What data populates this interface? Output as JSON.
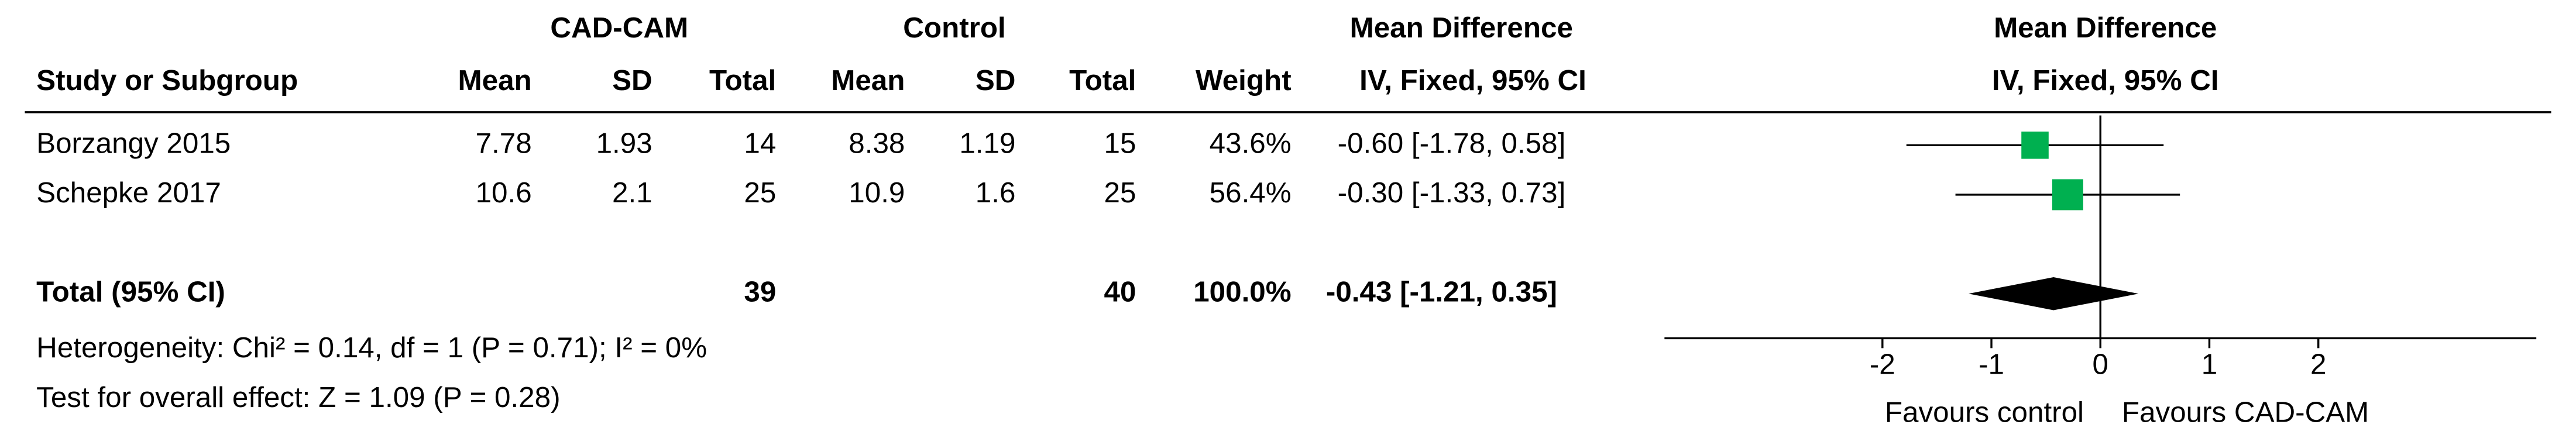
{
  "chart_data": {
    "type": "forest",
    "group_headers": [
      "CAD-CAM",
      "Control"
    ],
    "effect_header": "Mean Difference",
    "effect_method": "IV, Fixed, 95% CI",
    "plot_header": "Mean Difference",
    "plot_method": "IV, Fixed, 95% CI",
    "columns": [
      "Study or Subgroup",
      "Mean",
      "SD",
      "Total",
      "Mean",
      "SD",
      "Total",
      "Weight"
    ],
    "studies": [
      {
        "name": "Borzangy 2015",
        "mean1": 7.78,
        "sd1": 1.93,
        "total1": 14,
        "mean2": 8.38,
        "sd2": 1.19,
        "total2": 15,
        "weight": 43.6,
        "weight_label": "43.6%",
        "md": -0.6,
        "ci_low": -1.78,
        "ci_high": 0.58,
        "effect_label": "-0.60 [-1.78, 0.58]"
      },
      {
        "name": "Schepke 2017",
        "mean1": 10.6,
        "sd1": 2.1,
        "total1": 25,
        "mean2": 10.9,
        "sd2": 1.6,
        "total2": 25,
        "weight": 56.4,
        "weight_label": "56.4%",
        "md": -0.3,
        "ci_low": -1.33,
        "ci_high": 0.73,
        "effect_label": "-0.30 [-1.33, 0.73]"
      }
    ],
    "total": {
      "name": "Total (95% CI)",
      "total1": 39,
      "total2": 40,
      "weight_label": "100.0%",
      "md": -0.43,
      "ci_low": -1.21,
      "ci_high": 0.35,
      "effect_label": "-0.43 [-1.21, 0.35]"
    },
    "heterogeneity": "Heterogeneity: Chi² = 0.14, df = 1 (P = 0.71); I² = 0%",
    "overall_effect": "Test for overall effect: Z = 1.09 (P = 0.28)",
    "xlim": [
      -4,
      4
    ],
    "xticks": [
      -2,
      -1,
      0,
      1,
      2
    ],
    "favours_left": "Favours control",
    "favours_right": "Favours CAD-CAM",
    "square_color": "#00b050",
    "diamond_color": "#000000"
  }
}
